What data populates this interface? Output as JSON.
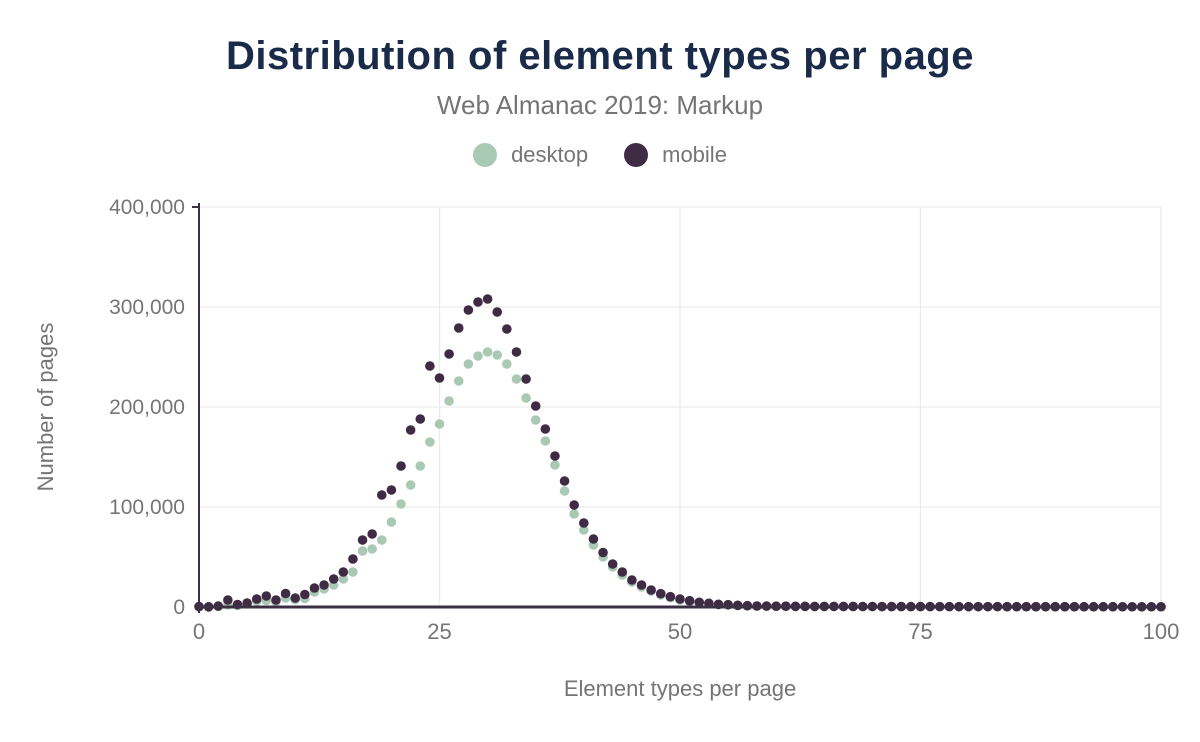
{
  "header": {
    "title": "Distribution of element types per page",
    "subtitle": "Web Almanac 2019: Markup"
  },
  "colors": {
    "title": "#1a2b49",
    "label_gray": "#757575",
    "grid": "#ececec",
    "axis": "#3c3144",
    "desktop": "#a9c9b5",
    "mobile": "#3f2b44",
    "background": "#ffffff"
  },
  "chart_data": {
    "type": "scatter",
    "title": "Distribution of element types per page",
    "subtitle": "Web Almanac 2019: Markup",
    "xlabel": "Element types per page",
    "ylabel": "Number of pages",
    "xlim": [
      0,
      100
    ],
    "ylim": [
      0,
      400000
    ],
    "grid": true,
    "legend_position": "top",
    "x_ticks": {
      "values": [
        0,
        25,
        50,
        75,
        100
      ],
      "labels": [
        "0",
        "25",
        "50",
        "75",
        "100"
      ]
    },
    "y_ticks": {
      "values": [
        0,
        100000,
        200000,
        300000,
        400000
      ],
      "labels": [
        "0",
        "100,000",
        "200,000",
        "300,000",
        "400,000"
      ]
    },
    "x": [
      0,
      1,
      2,
      3,
      4,
      5,
      6,
      7,
      8,
      9,
      10,
      11,
      12,
      13,
      14,
      15,
      16,
      17,
      18,
      19,
      20,
      21,
      22,
      23,
      24,
      25,
      26,
      27,
      28,
      29,
      30,
      31,
      32,
      33,
      34,
      35,
      36,
      37,
      38,
      39,
      40,
      41,
      42,
      43,
      44,
      45,
      46,
      47,
      48,
      49,
      50,
      51,
      52,
      53,
      54,
      55,
      56,
      57,
      58,
      59,
      60,
      61,
      62,
      63,
      64,
      65,
      66,
      67,
      68,
      69,
      70,
      71,
      72,
      73,
      74,
      75,
      76,
      77,
      78,
      79,
      80,
      81,
      82,
      83,
      84,
      85,
      86,
      87,
      88,
      89,
      90,
      91,
      92,
      93,
      94,
      95,
      96,
      97,
      98,
      99,
      100
    ],
    "series": [
      {
        "name": "desktop",
        "color": "#a9c9b5",
        "values": [
          300,
          150,
          700,
          2000,
          1500,
          3000,
          6000,
          6500,
          5500,
          9000,
          7500,
          8500,
          15000,
          18000,
          22000,
          28000,
          35000,
          56000,
          58000,
          67000,
          85000,
          103000,
          122000,
          141000,
          165000,
          183000,
          206000,
          226000,
          243000,
          251000,
          255000,
          252000,
          243000,
          228000,
          209000,
          187000,
          166000,
          142000,
          116000,
          93000,
          77000,
          62000,
          50000,
          40000,
          32000,
          25000,
          20000,
          16000,
          12000,
          9300,
          7000,
          5300,
          4200,
          3200,
          2400,
          2000,
          1500,
          1200,
          900,
          800,
          700,
          700,
          600,
          600,
          500,
          500,
          500,
          450,
          450,
          400,
          400,
          350,
          350,
          350,
          300,
          300,
          300,
          280,
          280,
          250,
          250,
          250,
          250,
          250,
          220,
          220,
          220,
          200,
          200,
          200,
          200,
          200,
          180,
          180,
          180,
          180,
          150,
          150,
          150,
          150,
          150
        ]
      },
      {
        "name": "mobile",
        "color": "#3f2b44",
        "values": [
          400,
          200,
          900,
          7000,
          2500,
          4000,
          8000,
          11000,
          7000,
          13500,
          9000,
          12500,
          19000,
          22000,
          28000,
          35000,
          48000,
          67000,
          73000,
          112000,
          117000,
          141000,
          177000,
          188000,
          241000,
          229000,
          253000,
          279000,
          297000,
          305000,
          308000,
          295000,
          278000,
          255000,
          228000,
          201000,
          178000,
          151000,
          126000,
          102000,
          84000,
          68000,
          54500,
          43000,
          35000,
          27000,
          22000,
          17000,
          13300,
          10300,
          8000,
          6300,
          4700,
          3700,
          2700,
          2300,
          1700,
          1300,
          1000,
          900,
          800,
          800,
          700,
          700,
          600,
          600,
          600,
          550,
          550,
          500,
          500,
          450,
          450,
          450,
          400,
          400,
          400,
          380,
          380,
          350,
          350,
          350,
          350,
          350,
          320,
          320,
          320,
          300,
          300,
          300,
          300,
          300,
          280,
          280,
          280,
          280,
          250,
          250,
          250,
          250,
          250
        ]
      }
    ]
  }
}
